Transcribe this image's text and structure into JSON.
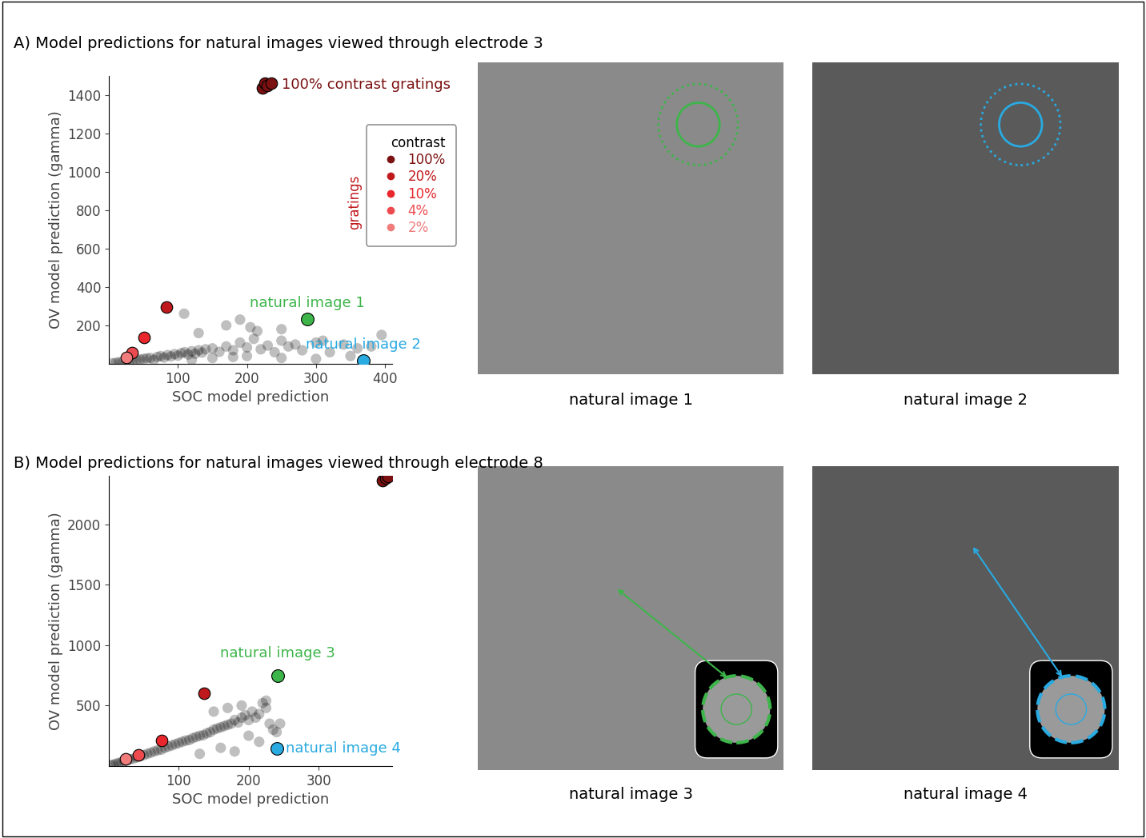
{
  "chart_data": [
    {
      "type": "scatter",
      "title": "A) Model predictions for natural images viewed through electrode 3",
      "xlabel": "SOC model prediction",
      "ylabel": "OV model prediction (gamma)",
      "xlim": [
        0,
        410
      ],
      "ylim": [
        0,
        1500
      ],
      "xticks": [
        100,
        200,
        300,
        400
      ],
      "yticks": [
        200,
        400,
        600,
        800,
        1000,
        1200,
        1400
      ],
      "legend": "center right",
      "legend_title": "contrast",
      "legend_group_label": "gratings",
      "series": [
        {
          "color": "#000000",
          "x": [
            5,
            10,
            15,
            20,
            25,
            30,
            35,
            40,
            45,
            50,
            55,
            60,
            65,
            70,
            75,
            80,
            85,
            90,
            95,
            100,
            105,
            110,
            115,
            120,
            125,
            130,
            135,
            140,
            150,
            160,
            170,
            180,
            190,
            200,
            210,
            220,
            230,
            240,
            250,
            260,
            270,
            280,
            300,
            320,
            340,
            360,
            380,
            395,
            130,
            170,
            190,
            205,
            215,
            250,
            310,
            109,
            150,
            200,
            250,
            300,
            350,
            120,
            180
          ],
          "values": [
            2,
            5,
            8,
            10,
            12,
            15,
            18,
            20,
            22,
            25,
            28,
            30,
            20,
            35,
            40,
            32,
            45,
            38,
            50,
            42,
            55,
            60,
            48,
            65,
            52,
            70,
            58,
            75,
            80,
            62,
            90,
            70,
            110,
            85,
            130,
            75,
            95,
            60,
            120,
            90,
            100,
            70,
            110,
            60,
            100,
            80,
            90,
            150,
            160,
            200,
            230,
            190,
            170,
            180,
            120,
            261,
            30,
            40,
            30,
            25,
            40,
            20,
            35
          ]
        },
        {
          "name": "100%",
          "color": "#7b1111",
          "x": [
            222,
            226,
            230,
            235
          ],
          "values": [
            1440,
            1462,
            1452,
            1465
          ]
        },
        {
          "name": "20%",
          "color": "#c0191d",
          "x": [
            83
          ],
          "values": [
            294
          ]
        },
        {
          "name": "10%",
          "color": "#e8262b",
          "x": [
            51
          ],
          "values": [
            139
          ]
        },
        {
          "name": "4%",
          "color": "#ed4a4f",
          "x": [
            34
          ],
          "values": [
            57
          ]
        },
        {
          "name": "2%",
          "color": "#f07c7c",
          "x": [
            26
          ],
          "values": [
            33
          ]
        }
      ],
      "annotations": [
        {
          "text": "100% contrast gratings",
          "x": 238,
          "y": 1455,
          "color": "#7b1111"
        },
        {
          "text": "natural image 1",
          "x": 287,
          "y": 233,
          "color": "#3db54a",
          "marker": "o"
        },
        {
          "text": "natural image 2",
          "x": 368,
          "y": 16,
          "color": "#29aae1",
          "marker": "o"
        }
      ],
      "images": [
        {
          "caption": "natural image 1",
          "color": "#3db54a"
        },
        {
          "caption": "natural image 2",
          "color": "#29aae1"
        }
      ]
    },
    {
      "type": "scatter",
      "title": "B) Model predictions for natural images viewed through electrode 8",
      "xlabel": "SOC model prediction",
      "ylabel": "OV model prediction (gamma)",
      "xlim": [
        0,
        405
      ],
      "ylim": [
        0,
        2400
      ],
      "xticks": [
        100,
        200,
        300
      ],
      "yticks": [
        500,
        1000,
        1500,
        2000
      ],
      "series": [
        {
          "color": "#000000",
          "x": [
            3,
            6,
            10,
            14,
            18,
            22,
            26,
            30,
            35,
            40,
            45,
            50,
            55,
            60,
            65,
            70,
            75,
            80,
            85,
            90,
            95,
            100,
            105,
            110,
            115,
            120,
            125,
            130,
            135,
            140,
            145,
            150,
            155,
            160,
            165,
            170,
            175,
            180,
            185,
            190,
            195,
            200,
            205,
            210,
            215,
            220,
            225,
            230,
            235,
            240,
            245,
            150,
            170,
            190,
            200,
            215,
            225,
            160,
            180,
            130
          ],
          "values": [
            5,
            10,
            18,
            25,
            30,
            40,
            45,
            55,
            60,
            70,
            80,
            90,
            100,
            110,
            120,
            130,
            135,
            150,
            160,
            170,
            180,
            190,
            200,
            210,
            215,
            230,
            240,
            250,
            255,
            270,
            280,
            300,
            310,
            320,
            330,
            340,
            350,
            380,
            360,
            400,
            420,
            380,
            450,
            400,
            430,
            520,
            480,
            350,
            300,
            280,
            350,
            450,
            480,
            500,
            250,
            200,
            540,
            150,
            120,
            100
          ]
        },
        {
          "color": "#7b1111",
          "x": [
            392,
            396,
            399
          ],
          "values": [
            2360,
            2385,
            2395
          ],
          "outlined": true
        },
        {
          "color": "#c0191d",
          "x": [
            136
          ],
          "values": [
            600
          ],
          "outlined": true
        },
        {
          "color": "#e8262b",
          "x": [
            76
          ],
          "values": [
            211
          ],
          "outlined": true
        },
        {
          "color": "#ed4a4f",
          "x": [
            42
          ],
          "values": [
            93
          ],
          "outlined": true
        },
        {
          "color": "#f07c7c",
          "x": [
            24
          ],
          "values": [
            56
          ],
          "outlined": true
        }
      ],
      "annotations": [
        {
          "text": "natural image 3",
          "x": 241,
          "y": 745,
          "color": "#3db54a",
          "marker": "o"
        },
        {
          "text": "natural image 4",
          "x": 240,
          "y": 143,
          "color": "#29aae1",
          "marker": "o"
        }
      ],
      "images": [
        {
          "caption": "natural image 3",
          "color": "#3db54a"
        },
        {
          "caption": "natural image 4",
          "color": "#29aae1"
        }
      ]
    }
  ]
}
